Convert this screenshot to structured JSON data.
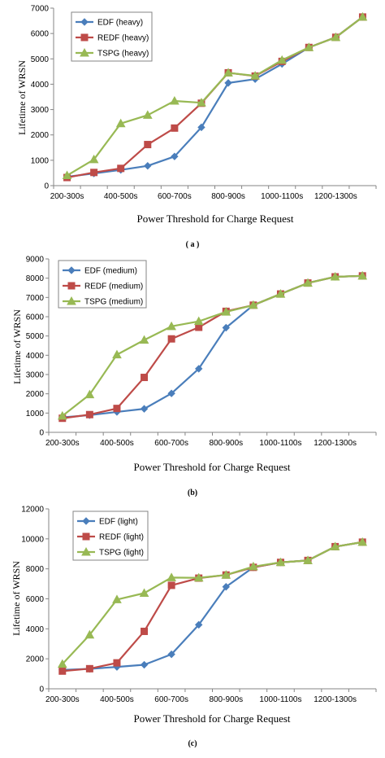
{
  "chart_data": [
    {
      "type": "line",
      "panel_label": "( a )",
      "xlabel": "Power Threshold for Charge Request",
      "ylabel": "Lifetime of  WRSN",
      "ylim": [
        0,
        7000
      ],
      "yticks": [
        0,
        1000,
        2000,
        3000,
        4000,
        5000,
        6000,
        7000
      ],
      "categories": [
        "200-300s",
        "300-400s",
        "400-500s",
        "500-600s",
        "600-700s",
        "700-800s",
        "800-900s",
        "900-1000s",
        "1000-1100s",
        "1100-1200s",
        "1200-1300s",
        "1300-1400s"
      ],
      "category_labels_shown": [
        "200-300s",
        "400-500s",
        "600-700s",
        "800-900s",
        "1000-1100s",
        "1200-1300s"
      ],
      "legend_position": "top-left",
      "series": [
        {
          "name": "EDF  (heavy)",
          "color": "#4a7ebb",
          "marker": "diamond",
          "values": [
            350,
            480,
            620,
            780,
            1150,
            2300,
            4050,
            4200,
            4800,
            5450,
            5850,
            6650
          ]
        },
        {
          "name": "REDF  (heavy)",
          "color": "#be4b48",
          "marker": "square",
          "values": [
            320,
            520,
            680,
            1620,
            2270,
            3250,
            4450,
            4320,
            4900,
            5450,
            5850,
            6650
          ]
        },
        {
          "name": "TSPG  (heavy)",
          "color": "#98b954",
          "marker": "triangle",
          "values": [
            400,
            1030,
            2450,
            2780,
            3340,
            3270,
            4450,
            4330,
            4950,
            5450,
            5850,
            6650
          ]
        }
      ]
    },
    {
      "type": "line",
      "panel_label": "(b)",
      "xlabel": "Power Threshold for Charge Request",
      "ylabel": "Lifetime of WRSN",
      "ylim": [
        0,
        9000
      ],
      "yticks": [
        0,
        1000,
        2000,
        3000,
        4000,
        5000,
        6000,
        7000,
        8000,
        9000
      ],
      "categories": [
        "200-300s",
        "300-400s",
        "400-500s",
        "500-600s",
        "600-700s",
        "700-800s",
        "800-900s",
        "900-1000s",
        "1000-1100s",
        "1100-1200s",
        "1200-1300s",
        "1300-1400s"
      ],
      "category_labels_shown": [
        "200-300s",
        "400-500s",
        "600-700s",
        "800-900s",
        "1000-1100s",
        "1200-1300s"
      ],
      "legend_position": "top-left",
      "series": [
        {
          "name": "EDF  (medium)",
          "color": "#4a7ebb",
          "marker": "diamond",
          "values": [
            780,
            890,
            1060,
            1220,
            2020,
            3300,
            5430,
            6600,
            7180,
            7750,
            8070,
            8120
          ]
        },
        {
          "name": "REDF  (medium)",
          "color": "#be4b48",
          "marker": "square",
          "values": [
            730,
            920,
            1240,
            2850,
            4850,
            5450,
            6280,
            6600,
            7180,
            7750,
            8070,
            8120
          ]
        },
        {
          "name": "TSPG  (medium)",
          "color": "#98b954",
          "marker": "triangle",
          "values": [
            850,
            1960,
            4030,
            4790,
            5500,
            5760,
            6250,
            6600,
            7180,
            7750,
            8070,
            8120
          ]
        }
      ]
    },
    {
      "type": "line",
      "panel_label": "(c)",
      "xlabel": "Power Threshold for Charge Request",
      "ylabel": "Lifetime of WRSN",
      "ylim": [
        0,
        12000
      ],
      "yticks": [
        0,
        2000,
        4000,
        6000,
        8000,
        10000,
        12000
      ],
      "categories": [
        "200-300s",
        "300-400s",
        "400-500s",
        "500-600s",
        "600-700s",
        "700-800s",
        "800-900s",
        "900-1000s",
        "1000-1100s",
        "1100-1200s",
        "1200-1300s",
        "1300-1400s"
      ],
      "category_labels_shown": [
        "200-300s",
        "400-500s",
        "600-700s",
        "800-900s",
        "1000-1100s",
        "1200-1300s"
      ],
      "legend_position": "top-left",
      "series": [
        {
          "name": "EDF  (light)",
          "color": "#4a7ebb",
          "marker": "diamond",
          "values": [
            1260,
            1330,
            1460,
            1600,
            2300,
            4270,
            6800,
            8100,
            8430,
            8560,
            9480,
            9780
          ]
        },
        {
          "name": "REDF  (light)",
          "color": "#be4b48",
          "marker": "square",
          "values": [
            1180,
            1340,
            1730,
            3830,
            6900,
            7380,
            7590,
            8100,
            8430,
            8560,
            9480,
            9780
          ]
        },
        {
          "name": "TSPG  (light)",
          "color": "#98b954",
          "marker": "triangle",
          "values": [
            1650,
            3600,
            5950,
            6380,
            7420,
            7400,
            7590,
            8150,
            8430,
            8560,
            9480,
            9780
          ]
        }
      ]
    }
  ]
}
